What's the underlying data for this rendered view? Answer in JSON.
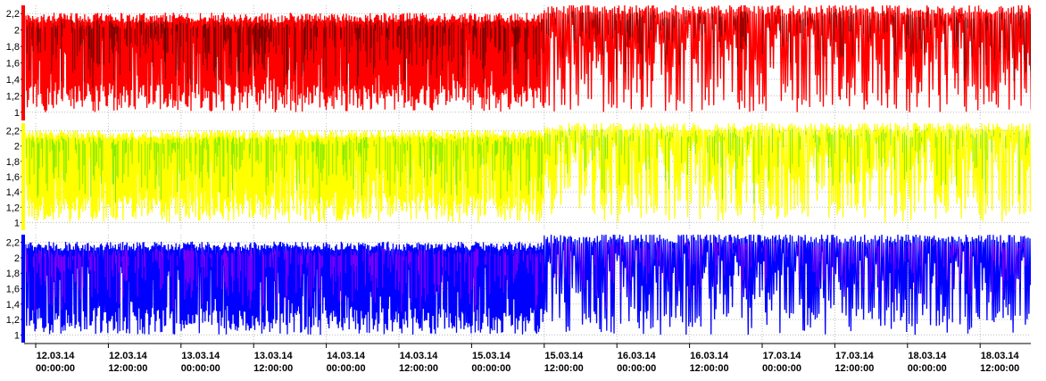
{
  "chart_data": [
    {
      "type": "area",
      "ylim": [
        0.9,
        2.3
      ],
      "yticks": [
        "1",
        "1,2",
        "1,4",
        "1,6",
        "1,8",
        "2",
        "2,2"
      ],
      "ytick_values": [
        1,
        1.2,
        1.4,
        1.6,
        1.8,
        2,
        2.2
      ],
      "grid": true,
      "colors": {
        "primary": "#ff0000",
        "secondary": "#000000",
        "indicator": "#ff0000"
      },
      "levels": {
        "upper_before": 2.15,
        "upper_after": 2.25,
        "lower": 1.0,
        "break_at": "15.03.14 12:00:00"
      }
    },
    {
      "type": "area",
      "ylim": [
        0.9,
        2.3
      ],
      "yticks": [
        "1",
        "1,2",
        "1,4",
        "1,6",
        "1,8",
        "2",
        "2,2"
      ],
      "ytick_values": [
        1,
        1.2,
        1.4,
        1.6,
        1.8,
        2,
        2.2
      ],
      "grid": true,
      "colors": {
        "primary": "#ffff00",
        "secondary": "#22dd00",
        "indicator": "#ffff00"
      },
      "levels": {
        "upper_before": 2.15,
        "upper_after": 2.25,
        "lower": 1.0,
        "break_at": "15.03.14 12:00:00"
      }
    },
    {
      "type": "area",
      "ylim": [
        0.9,
        2.3
      ],
      "yticks": [
        "1",
        "1,2",
        "1,4",
        "1,6",
        "1,8",
        "2",
        "2,2"
      ],
      "ytick_values": [
        1,
        1.2,
        1.4,
        1.6,
        1.8,
        2,
        2.2
      ],
      "grid": true,
      "colors": {
        "primary": "#0000ff",
        "secondary": "#ee00ee",
        "indicator": "#0000ff"
      },
      "levels": {
        "upper_before": 2.15,
        "upper_after": 2.25,
        "lower": 1.0,
        "break_at": "15.03.14 12:00:00"
      }
    }
  ],
  "x_axis": {
    "ticks": [
      {
        "date": "12.03.14",
        "time": "00:00:00"
      },
      {
        "date": "12.03.14",
        "time": "12:00:00"
      },
      {
        "date": "13.03.14",
        "time": "00:00:00"
      },
      {
        "date": "13.03.14",
        "time": "12:00:00"
      },
      {
        "date": "14.03.14",
        "time": "00:00:00"
      },
      {
        "date": "14.03.14",
        "time": "12:00:00"
      },
      {
        "date": "15.03.14",
        "time": "00:00:00"
      },
      {
        "date": "15.03.14",
        "time": "12:00:00"
      },
      {
        "date": "16.03.14",
        "time": "00:00:00"
      },
      {
        "date": "16.03.14",
        "time": "12:00:00"
      },
      {
        "date": "17.03.14",
        "time": "00:00:00"
      },
      {
        "date": "17.03.14",
        "time": "12:00:00"
      },
      {
        "date": "18.03.14",
        "time": "00:00:00"
      },
      {
        "date": "18.03.14",
        "time": "12:00:00"
      }
    ]
  }
}
